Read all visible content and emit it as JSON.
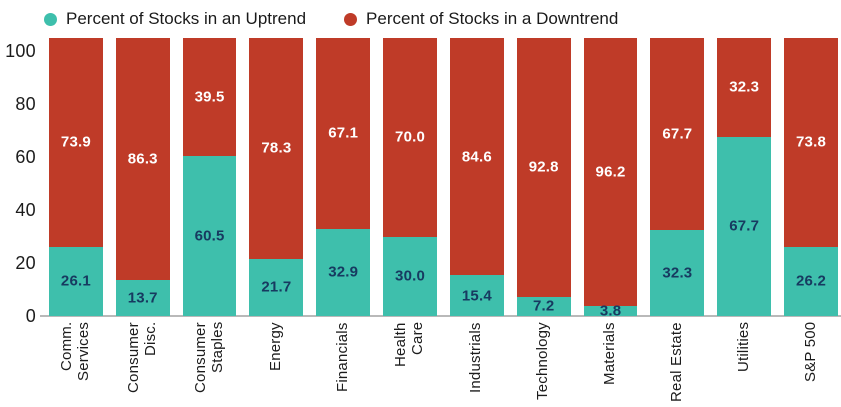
{
  "legend": {
    "items": [
      {
        "label": "Percent of Stocks in an Uptrend",
        "color": "#3ebfac"
      },
      {
        "label": "Percent of Stocks in a Downtrend",
        "color": "#bf3b28"
      }
    ]
  },
  "chart_data": {
    "type": "bar",
    "stacked": true,
    "title": "",
    "xlabel": "",
    "ylabel": "",
    "categories": [
      "Comm.\nServices",
      "Consumer\nDisc.",
      "Consumer\nStaples",
      "Energy",
      "Financials",
      "Health\nCare",
      "Industrials",
      "Technology",
      "Materials",
      "Real Estate",
      "Utilities",
      "S&P 500"
    ],
    "series": [
      {
        "name": "Percent of Stocks in an Uptrend",
        "color": "#3ebfac",
        "label_color": "#173a60",
        "values": [
          "26.1",
          "13.7",
          "60.5",
          "21.7",
          "32.9",
          "30.0",
          "15.4",
          "7.2",
          "3.8",
          "32.3",
          "67.7",
          "26.2"
        ]
      },
      {
        "name": "Percent of Stocks in a Downtrend",
        "color": "#bf3b28",
        "label_color": "#ffffff",
        "values": [
          "73.9",
          "86.3",
          "39.5",
          "78.3",
          "67.1",
          "70.0",
          "84.6",
          "92.8",
          "96.2",
          "67.7",
          "32.3",
          "73.8"
        ]
      }
    ],
    "yticks": [
      "0",
      "20",
      "40",
      "60",
      "80",
      "100"
    ],
    "ylim": [
      0,
      105
    ],
    "grid": false,
    "legend_position": "top",
    "axis_color": "#b9b9b9"
  }
}
